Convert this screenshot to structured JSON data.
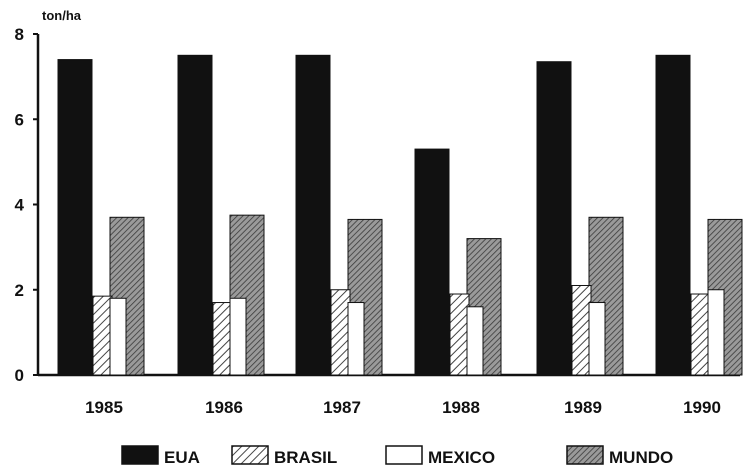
{
  "chart_data": {
    "type": "bar",
    "ylabel": "ton/ha",
    "ylim": [
      0,
      8
    ],
    "yticks": [
      "0",
      "2",
      "4",
      "6",
      "8"
    ],
    "categories": [
      "1985",
      "1986",
      "1987",
      "1988",
      "1989",
      "1990"
    ],
    "series": [
      {
        "name": "EUA",
        "values": [
          7.4,
          7.5,
          7.5,
          5.3,
          7.35,
          7.5
        ],
        "pattern": "solid",
        "color": "#111111"
      },
      {
        "name": "BRASIL",
        "values": [
          1.85,
          1.7,
          2.0,
          1.9,
          2.1,
          1.9
        ],
        "pattern": "diagonal-hatch",
        "color": "#555555"
      },
      {
        "name": "MEXICO",
        "values": [
          1.8,
          1.8,
          1.7,
          1.6,
          1.7,
          2.0
        ],
        "pattern": "white",
        "color": "#ffffff"
      },
      {
        "name": "MUNDO",
        "values": [
          3.7,
          3.75,
          3.65,
          3.2,
          3.7,
          3.65
        ],
        "pattern": "dense-hatch",
        "color": "#666666"
      }
    ],
    "legend_position": "bottom",
    "grid": false
  }
}
